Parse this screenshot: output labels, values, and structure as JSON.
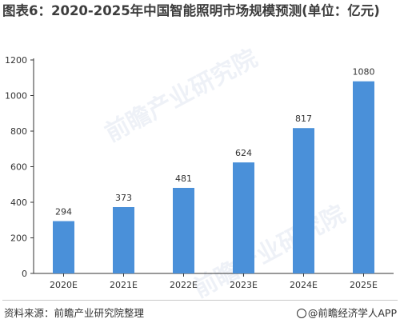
{
  "title": "图表6：2020-2025年中国智能照明市场规模预测(单位：亿元)",
  "watermark_text": "前瞻产业研究院",
  "footer": {
    "source": "资料来源：前瞻产业研究院整理",
    "brand": "@前瞻经济学人APP"
  },
  "colors": {
    "bar": "#4a90d9",
    "axis": "#333333",
    "text": "#333333"
  },
  "chart_data": {
    "type": "bar",
    "title": "图表6：2020-2025年中国智能照明市场规模预测(单位：亿元)",
    "categories": [
      "2020E",
      "2021E",
      "2022E",
      "2023E",
      "2024E",
      "2025E"
    ],
    "values": [
      294,
      373,
      481,
      624,
      817,
      1080
    ],
    "data_labels": [
      "294",
      "373",
      "481",
      "624",
      "817",
      "1080"
    ],
    "yticks": [
      0,
      200,
      400,
      600,
      800,
      1000,
      1200
    ],
    "ylim": [
      0,
      1200
    ],
    "xlabel": "",
    "ylabel": "",
    "grid": false,
    "legend": "none"
  }
}
